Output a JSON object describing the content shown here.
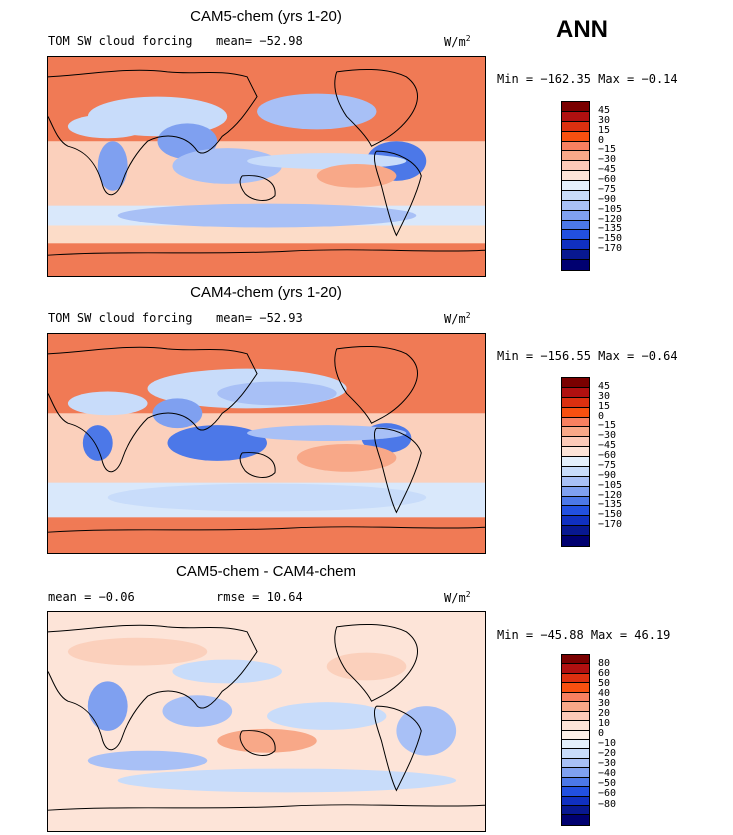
{
  "season": "ANN",
  "unit_prefix": "W/m",
  "unit_sup": "2",
  "panels": [
    {
      "title": "CAM5-chem (yrs 1-20)",
      "left_label": "TOM SW cloud forcing",
      "stat1": "mean= −52.98",
      "stat2": "",
      "minmax": "Min = −162.35 Max =  −0.14",
      "colorbar": {
        "colors": [
          "#7a0000",
          "#b01010",
          "#dc3010",
          "#f85010",
          "#f88060",
          "#f8a888",
          "#fccab8",
          "#fde4d8",
          "#e4f0fc",
          "#c8dcfa",
          "#a8c0f6",
          "#7fa0f0",
          "#4c78e8",
          "#2250e0",
          "#1030c0",
          "#081890",
          "#000070"
        ],
        "labels": [
          "45",
          "30",
          "15",
          "0",
          "−15",
          "−30",
          "−45",
          "−60",
          "−75",
          "−90",
          "−105",
          "−120",
          "−135",
          "−150",
          "−170"
        ]
      }
    },
    {
      "title": "CAM4-chem (yrs 1-20)",
      "left_label": "TOM SW cloud forcing",
      "stat1": "mean= −52.93",
      "stat2": "",
      "minmax": "Min = −156.55 Max =  −0.64",
      "colorbar": {
        "colors": [
          "#7a0000",
          "#b01010",
          "#dc3010",
          "#f85010",
          "#f88060",
          "#f8a888",
          "#fccab8",
          "#fde4d8",
          "#e4f0fc",
          "#c8dcfa",
          "#a8c0f6",
          "#7fa0f0",
          "#4c78e8",
          "#2250e0",
          "#1030c0",
          "#081890",
          "#000070"
        ],
        "labels": [
          "45",
          "30",
          "15",
          "0",
          "−15",
          "−30",
          "−45",
          "−60",
          "−75",
          "−90",
          "−105",
          "−120",
          "−135",
          "−150",
          "−170"
        ]
      }
    },
    {
      "title": "CAM5-chem - CAM4-chem",
      "left_label": "mean =  −0.06",
      "stat1": "rmse =  10.64",
      "stat2": "",
      "minmax": "Min = −45.88 Max =  46.19",
      "colorbar": {
        "colors": [
          "#7a0000",
          "#b01010",
          "#dc3010",
          "#f85010",
          "#f88060",
          "#f8a888",
          "#fccab8",
          "#fde4d8",
          "#fdf0e8",
          "#e4f0fc",
          "#c8dcfa",
          "#a8c0f6",
          "#7fa0f0",
          "#4c78e8",
          "#2250e0",
          "#1030c0",
          "#081890",
          "#000070"
        ],
        "labels": [
          "80",
          "60",
          "50",
          "40",
          "30",
          "20",
          "10",
          "0",
          "−10",
          "−20",
          "−30",
          "−40",
          "−50",
          "−60",
          "−80"
        ]
      }
    }
  ]
}
